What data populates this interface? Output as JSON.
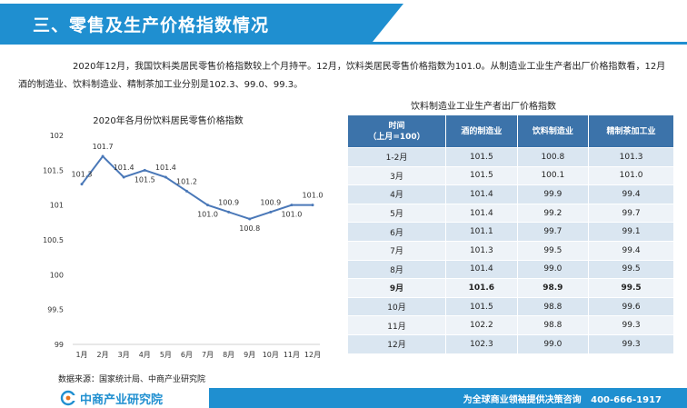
{
  "header": {
    "title": "三、零售及生产价格指数情况"
  },
  "paragraph": "2020年12月，我国饮料类居民零售价格指数较上个月持平。12月，饮料类居民零售价格指数为101.0。从制造业工业生产者出厂价格指数看，12月酒的制造业、饮料制造业、精制茶加工业分别是102.3、99.0、99.3。",
  "colors": {
    "accent": "#1f8fd0",
    "table_header": "#3c73aa",
    "line": "#4a78b8"
  },
  "chart_data": {
    "type": "line",
    "title": "2020年各月份饮料居民零售价格指数",
    "categories": [
      "1月",
      "2月",
      "3月",
      "4月",
      "5月",
      "6月",
      "7月",
      "8月",
      "9月",
      "10月",
      "11月",
      "12月"
    ],
    "series": [
      {
        "values": [
          101.3,
          101.7,
          101.4,
          101.5,
          101.4,
          101.2,
          101.0,
          100.9,
          100.8,
          100.9,
          101.0,
          101.0
        ]
      }
    ],
    "data_labels": [
      "101.3",
      "101.7",
      "101.4",
      "101.5",
      "101.4",
      "101.2",
      "101.0",
      "100.9",
      "100.8",
      "100.9",
      "101.0",
      "101.0"
    ],
    "ylim": [
      99,
      102
    ],
    "yticks": [
      "99",
      "99.5",
      "100",
      "100.5",
      "101",
      "101.5",
      "102"
    ],
    "grid": false,
    "legend": "none"
  },
  "table": {
    "title": "饮料制造业工业生产者出厂价格指数",
    "headers": [
      "时间\n（上月=100）",
      "酒的制造业",
      "饮料制造业",
      "精制茶加工业"
    ],
    "rows": [
      [
        "1-2月",
        "101.5",
        "100.8",
        "101.3"
      ],
      [
        "3月",
        "101.5",
        "100.1",
        "101.0"
      ],
      [
        "4月",
        "101.4",
        "99.9",
        "99.4"
      ],
      [
        "5月",
        "101.4",
        "99.2",
        "99.7"
      ],
      [
        "6月",
        "101.1",
        "99.7",
        "99.1"
      ],
      [
        "7月",
        "101.3",
        "99.5",
        "99.4"
      ],
      [
        "8月",
        "101.4",
        "99.0",
        "99.5"
      ],
      [
        "9月",
        "101.6",
        "98.9",
        "99.5"
      ],
      [
        "10月",
        "101.5",
        "98.8",
        "99.6"
      ],
      [
        "11月",
        "102.2",
        "98.8",
        "99.3"
      ],
      [
        "12月",
        "102.3",
        "99.0",
        "99.3"
      ]
    ]
  },
  "source": "数据来源：国家统计局、中商产业研究院",
  "footer": {
    "logo_text": "中商产业研究院",
    "logo_icon": "ccid-logo-icon",
    "slogan": "为全球商业领袖提供决策咨询",
    "phone": "400-666-1917"
  }
}
